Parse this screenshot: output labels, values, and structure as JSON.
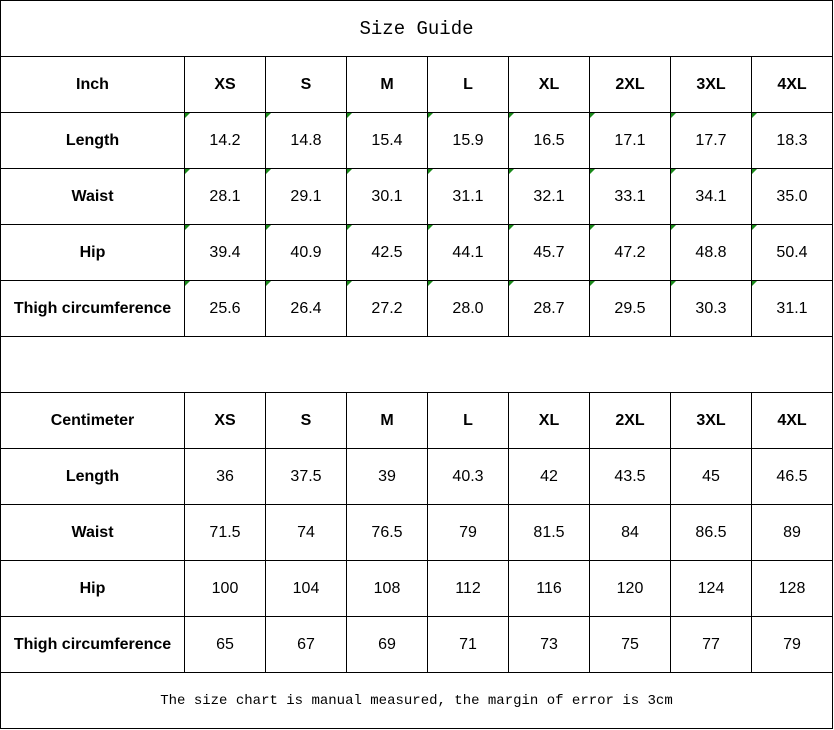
{
  "title": "Size Guide",
  "sizes": [
    "XS",
    "S",
    "M",
    "L",
    "XL",
    "2XL",
    "3XL",
    "4XL"
  ],
  "inch": {
    "unit_label": "Inch",
    "rows": [
      {
        "label": "Length",
        "values": [
          "14.2",
          "14.8",
          "15.4",
          "15.9",
          "16.5",
          "17.1",
          "17.7",
          "18.3"
        ]
      },
      {
        "label": "Waist",
        "values": [
          "28.1",
          "29.1",
          "30.1",
          "31.1",
          "32.1",
          "33.1",
          "34.1",
          "35.0"
        ]
      },
      {
        "label": "Hip",
        "values": [
          "39.4",
          "40.9",
          "42.5",
          "44.1",
          "45.7",
          "47.2",
          "48.8",
          "50.4"
        ]
      },
      {
        "label": "Thigh circumference",
        "values": [
          "25.6",
          "26.4",
          "27.2",
          "28.0",
          "28.7",
          "29.5",
          "30.3",
          "31.1"
        ]
      }
    ]
  },
  "cm": {
    "unit_label": "Centimeter",
    "rows": [
      {
        "label": "Length",
        "values": [
          "36",
          "37.5",
          "39",
          "40.3",
          "42",
          "43.5",
          "45",
          "46.5"
        ]
      },
      {
        "label": "Waist",
        "values": [
          "71.5",
          "74",
          "76.5",
          "79",
          "81.5",
          "84",
          "86.5",
          "89"
        ]
      },
      {
        "label": "Hip",
        "values": [
          "100",
          "104",
          "108",
          "112",
          "116",
          "120",
          "124",
          "128"
        ]
      },
      {
        "label": "Thigh circumference",
        "values": [
          "65",
          "67",
          "69",
          "71",
          "73",
          "75",
          "77",
          "79"
        ]
      }
    ]
  },
  "note": "The size chart is manual measured, the margin of error is 3cm",
  "colors": {
    "text_flag": "#1a8a1a"
  }
}
